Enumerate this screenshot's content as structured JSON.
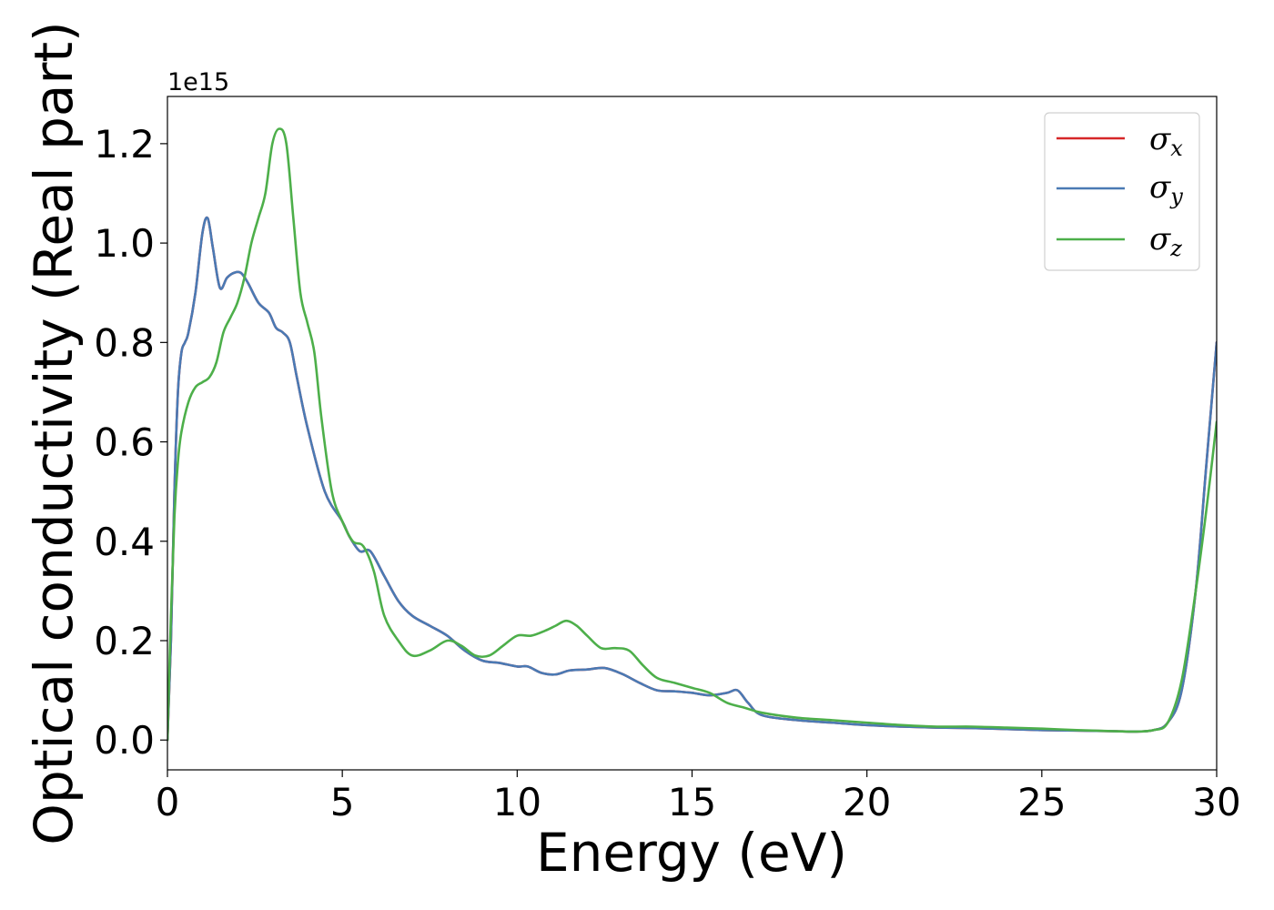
{
  "chart_data": {
    "type": "line",
    "xlabel": "Energy (eV)",
    "ylabel": "Optical conductivity (Real part)",
    "y_offset_label": "1e15",
    "xlim": [
      0,
      30
    ],
    "ylim": [
      -0.06,
      1.295
    ],
    "xticks": [
      "0",
      "5",
      "10",
      "15",
      "20",
      "25",
      "30"
    ],
    "yticks": [
      "0.0",
      "0.2",
      "0.4",
      "0.6",
      "0.8",
      "1.0",
      "1.2"
    ],
    "grid": false,
    "legend_position": "top-right",
    "colors": {
      "sigma_x": "#d62728",
      "sigma_y": "#4a7ab4",
      "sigma_z": "#4daf4a"
    },
    "series": [
      {
        "key": "sigma_x",
        "name": "σ",
        "subscript": "x",
        "color": "#d62728",
        "x": [
          0,
          0.1,
          0.2,
          0.3,
          0.4,
          0.5,
          0.6,
          0.8,
          1.0,
          1.15,
          1.3,
          1.5,
          1.7,
          1.9,
          2.1,
          2.3,
          2.6,
          2.9,
          3.1,
          3.3,
          3.5,
          3.7,
          4.0,
          4.5,
          5.0,
          5.2,
          5.5,
          5.8,
          6.2,
          6.6,
          7.0,
          7.5,
          8.0,
          8.5,
          9.0,
          9.5,
          10.0,
          10.3,
          10.7,
          11.1,
          11.5,
          12.0,
          12.5,
          13.0,
          13.5,
          14.0,
          14.5,
          15.0,
          15.5,
          16.0,
          16.3,
          16.6,
          17.0,
          18.0,
          19.0,
          20.0,
          21.0,
          22.0,
          23.0,
          24.0,
          25.0,
          26.0,
          27.0,
          27.7,
          28.2,
          28.6,
          29.0,
          29.4,
          29.7,
          30.0
        ],
        "values": [
          0.0,
          0.2,
          0.5,
          0.7,
          0.78,
          0.8,
          0.82,
          0.9,
          1.02,
          1.05,
          0.99,
          0.91,
          0.93,
          0.94,
          0.94,
          0.92,
          0.88,
          0.86,
          0.83,
          0.82,
          0.8,
          0.73,
          0.63,
          0.5,
          0.44,
          0.41,
          0.38,
          0.38,
          0.33,
          0.28,
          0.25,
          0.23,
          0.21,
          0.18,
          0.16,
          0.155,
          0.148,
          0.148,
          0.135,
          0.132,
          0.14,
          0.142,
          0.145,
          0.133,
          0.115,
          0.1,
          0.098,
          0.095,
          0.09,
          0.095,
          0.1,
          0.075,
          0.05,
          0.04,
          0.035,
          0.03,
          0.027,
          0.025,
          0.024,
          0.022,
          0.02,
          0.019,
          0.018,
          0.017,
          0.02,
          0.035,
          0.1,
          0.3,
          0.55,
          0.8
        ]
      },
      {
        "key": "sigma_y",
        "name": "σ",
        "subscript": "y",
        "color": "#4a7ab4",
        "x": [
          0,
          0.1,
          0.2,
          0.3,
          0.4,
          0.5,
          0.6,
          0.8,
          1.0,
          1.15,
          1.3,
          1.5,
          1.7,
          1.9,
          2.1,
          2.3,
          2.6,
          2.9,
          3.1,
          3.3,
          3.5,
          3.7,
          4.0,
          4.5,
          5.0,
          5.2,
          5.5,
          5.8,
          6.2,
          6.6,
          7.0,
          7.5,
          8.0,
          8.5,
          9.0,
          9.5,
          10.0,
          10.3,
          10.7,
          11.1,
          11.5,
          12.0,
          12.5,
          13.0,
          13.5,
          14.0,
          14.5,
          15.0,
          15.5,
          16.0,
          16.3,
          16.6,
          17.0,
          18.0,
          19.0,
          20.0,
          21.0,
          22.0,
          23.0,
          24.0,
          25.0,
          26.0,
          27.0,
          27.7,
          28.2,
          28.6,
          29.0,
          29.4,
          29.7,
          30.0
        ],
        "values": [
          0.0,
          0.2,
          0.5,
          0.7,
          0.78,
          0.8,
          0.82,
          0.9,
          1.02,
          1.05,
          0.99,
          0.91,
          0.93,
          0.94,
          0.94,
          0.92,
          0.88,
          0.86,
          0.83,
          0.82,
          0.8,
          0.73,
          0.63,
          0.5,
          0.44,
          0.41,
          0.38,
          0.38,
          0.33,
          0.28,
          0.25,
          0.23,
          0.21,
          0.18,
          0.16,
          0.155,
          0.148,
          0.148,
          0.135,
          0.132,
          0.14,
          0.142,
          0.145,
          0.133,
          0.115,
          0.1,
          0.098,
          0.095,
          0.09,
          0.095,
          0.1,
          0.075,
          0.05,
          0.04,
          0.035,
          0.03,
          0.027,
          0.025,
          0.024,
          0.022,
          0.02,
          0.019,
          0.018,
          0.017,
          0.02,
          0.035,
          0.1,
          0.3,
          0.55,
          0.8
        ]
      },
      {
        "key": "sigma_z",
        "name": "σ",
        "subscript": "z",
        "color": "#4daf4a",
        "x": [
          0,
          0.1,
          0.2,
          0.3,
          0.4,
          0.6,
          0.8,
          1.0,
          1.2,
          1.4,
          1.6,
          1.8,
          2.0,
          2.2,
          2.4,
          2.6,
          2.8,
          3.0,
          3.2,
          3.4,
          3.6,
          3.8,
          4.0,
          4.2,
          4.4,
          4.7,
          5.0,
          5.3,
          5.6,
          5.9,
          6.2,
          6.6,
          7.0,
          7.5,
          8.0,
          8.4,
          8.8,
          9.2,
          9.6,
          10.0,
          10.4,
          10.8,
          11.1,
          11.4,
          11.7,
          12.0,
          12.4,
          12.8,
          13.2,
          13.6,
          14.0,
          14.5,
          15.0,
          15.5,
          16.0,
          16.5,
          17.0,
          18.0,
          19.0,
          20.0,
          21.0,
          22.0,
          23.0,
          24.0,
          25.0,
          26.0,
          27.0,
          27.7,
          28.2,
          28.6,
          29.0,
          29.4,
          29.7,
          30.0
        ],
        "values": [
          0.0,
          0.25,
          0.45,
          0.56,
          0.62,
          0.68,
          0.71,
          0.72,
          0.73,
          0.76,
          0.82,
          0.85,
          0.88,
          0.93,
          1.0,
          1.05,
          1.1,
          1.2,
          1.23,
          1.2,
          1.05,
          0.9,
          0.84,
          0.78,
          0.65,
          0.5,
          0.44,
          0.4,
          0.39,
          0.34,
          0.25,
          0.2,
          0.17,
          0.18,
          0.2,
          0.19,
          0.17,
          0.17,
          0.19,
          0.21,
          0.21,
          0.22,
          0.23,
          0.24,
          0.23,
          0.21,
          0.185,
          0.185,
          0.18,
          0.15,
          0.125,
          0.115,
          0.105,
          0.095,
          0.075,
          0.065,
          0.055,
          0.045,
          0.04,
          0.035,
          0.03,
          0.027,
          0.027,
          0.025,
          0.023,
          0.02,
          0.018,
          0.017,
          0.02,
          0.035,
          0.12,
          0.3,
          0.46,
          0.64
        ]
      }
    ]
  }
}
